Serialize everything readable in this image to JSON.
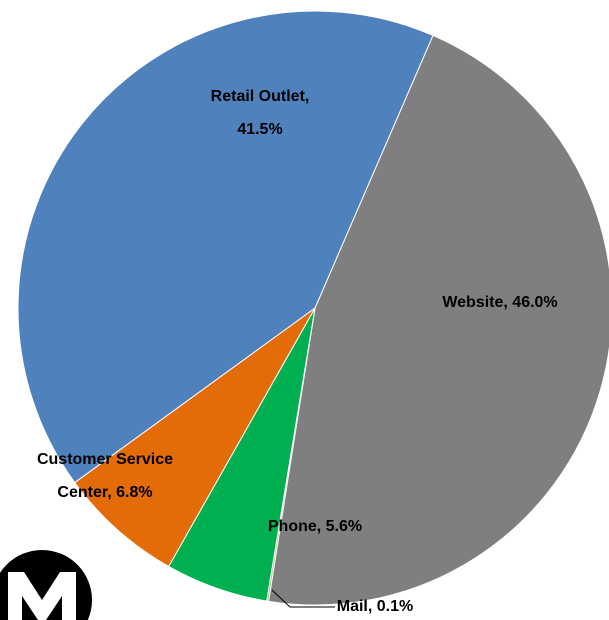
{
  "chart_data": {
    "type": "pie",
    "values": [
      46.0,
      0.1,
      5.6,
      6.8,
      41.5
    ],
    "labels": [
      "Website, 46.0%",
      "Mail, 0.1%",
      "Phone, 5.6%",
      [
        "Customer Service",
        "Center, 6.8%"
      ],
      [
        "Retail Outlet,",
        "41.5%"
      ]
    ],
    "colors": [
      "#7f7f7f",
      "#9bbb59",
      "#00b050",
      "#e36c09",
      "#4f81bd"
    ],
    "start_angle": 23.4,
    "direction": "clockwise"
  }
}
